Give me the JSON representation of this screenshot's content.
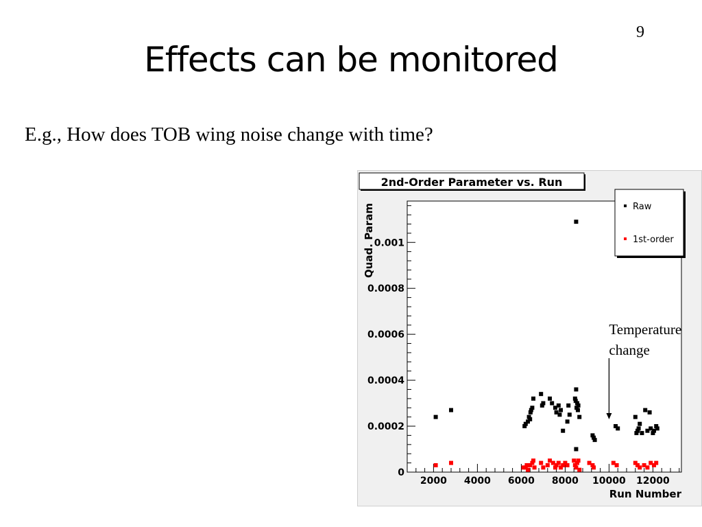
{
  "slide": {
    "number": "9",
    "title": "Effects can be monitored",
    "subtitle": "E.g., How does TOB wing noise change with time?"
  },
  "colors": {
    "raw": "#000000",
    "first_order": "#ff0000",
    "panel_bg": "#f0f0f0",
    "frame_bg": "#ffffff"
  },
  "chart_data": {
    "type": "scatter",
    "title": "2nd-Order Parameter vs. Run",
    "xlabel": "Run Number",
    "ylabel": "Quad. Param",
    "xlim": [
      800,
      13300
    ],
    "ylim": [
      0,
      0.00118
    ],
    "x_ticks": [
      2000,
      4000,
      6000,
      8000,
      10000,
      12000
    ],
    "x_tick_labels": [
      "2000",
      "4000",
      "6000",
      "8000",
      "10000",
      "12000"
    ],
    "y_ticks": [
      0,
      0.0002,
      0.0004,
      0.0006,
      0.0008,
      0.001
    ],
    "y_tick_labels": [
      "0",
      "0.0002",
      "0.0004",
      "0.0006",
      "0.0008",
      "0.001"
    ],
    "legend_position": "top-right",
    "annotation": {
      "text_lines": [
        "Temperature",
        "change"
      ],
      "x": 10000,
      "y": 0.00023
    },
    "series": [
      {
        "name": "Raw",
        "color": "#000000",
        "points": [
          [
            2100,
            0.00024
          ],
          [
            2800,
            0.00027
          ],
          [
            6150,
            0.0002
          ],
          [
            6200,
            0.00021
          ],
          [
            6300,
            0.00022
          ],
          [
            6350,
            0.00024
          ],
          [
            6400,
            0.00023
          ],
          [
            6420,
            0.00026
          ],
          [
            6450,
            0.00027
          ],
          [
            6500,
            0.00028
          ],
          [
            6550,
            0.00032
          ],
          [
            6900,
            0.00034
          ],
          [
            6950,
            0.00029
          ],
          [
            7000,
            0.0003
          ],
          [
            7300,
            0.00032
          ],
          [
            7400,
            0.0003
          ],
          [
            7550,
            0.00028
          ],
          [
            7600,
            0.00026
          ],
          [
            7700,
            0.00029
          ],
          [
            7750,
            0.00025
          ],
          [
            7800,
            0.00027
          ],
          [
            7900,
            0.00018
          ],
          [
            8100,
            0.00022
          ],
          [
            8150,
            0.00029
          ],
          [
            8200,
            0.00025
          ],
          [
            8450,
            0.00032
          ],
          [
            8480,
            0.00031
          ],
          [
            8500,
            0.00036
          ],
          [
            8520,
            0.00028
          ],
          [
            8550,
            0.0003
          ],
          [
            8580,
            0.00027
          ],
          [
            8600,
            0.00029
          ],
          [
            8650,
            0.00024
          ],
          [
            8500,
            0.0001
          ],
          [
            8500,
            0.00109
          ],
          [
            9250,
            0.00016
          ],
          [
            9300,
            0.00015
          ],
          [
            9350,
            0.00014
          ],
          [
            10300,
            0.0002
          ],
          [
            10400,
            0.00019
          ],
          [
            11200,
            0.00024
          ],
          [
            11250,
            0.00017
          ],
          [
            11300,
            0.00018
          ],
          [
            11350,
            0.00019
          ],
          [
            11400,
            0.00021
          ],
          [
            11500,
            0.00017
          ],
          [
            11650,
            0.00027
          ],
          [
            11750,
            0.00018
          ],
          [
            11850,
            0.00026
          ],
          [
            11900,
            0.00019
          ],
          [
            12000,
            0.00017
          ],
          [
            12050,
            0.00018
          ],
          [
            12150,
            0.0002
          ],
          [
            12200,
            0.00019
          ]
        ]
      },
      {
        "name": "1st-order",
        "color": "#ff0000",
        "points": [
          [
            2100,
            3e-05
          ],
          [
            2800,
            4e-05
          ],
          [
            6100,
            2e-05
          ],
          [
            6200,
            2e-05
          ],
          [
            6250,
            3e-05
          ],
          [
            6300,
            1e-05
          ],
          [
            6400,
            3e-05
          ],
          [
            6500,
            4e-05
          ],
          [
            6550,
            5e-05
          ],
          [
            6600,
            2e-05
          ],
          [
            6900,
            4e-05
          ],
          [
            7000,
            2e-05
          ],
          [
            7200,
            3e-05
          ],
          [
            7300,
            5e-05
          ],
          [
            7450,
            4e-05
          ],
          [
            7550,
            2e-05
          ],
          [
            7600,
            3e-05
          ],
          [
            7700,
            4e-05
          ],
          [
            7800,
            2e-05
          ],
          [
            7900,
            3e-05
          ],
          [
            8000,
            4e-05
          ],
          [
            8100,
            3e-05
          ],
          [
            8400,
            5e-05
          ],
          [
            8450,
            3e-05
          ],
          [
            8500,
            2e-05
          ],
          [
            8550,
            4e-05
          ],
          [
            8600,
            5e-05
          ],
          [
            8650,
            1e-05
          ],
          [
            9100,
            4e-05
          ],
          [
            9250,
            3e-05
          ],
          [
            9300,
            2e-05
          ],
          [
            10200,
            4e-05
          ],
          [
            10350,
            3e-05
          ],
          [
            11200,
            4e-05
          ],
          [
            11300,
            3e-05
          ],
          [
            11400,
            2e-05
          ],
          [
            11600,
            3e-05
          ],
          [
            11750,
            2e-05
          ],
          [
            11900,
            4e-05
          ],
          [
            12050,
            3e-05
          ],
          [
            12150,
            4e-05
          ]
        ]
      }
    ]
  }
}
